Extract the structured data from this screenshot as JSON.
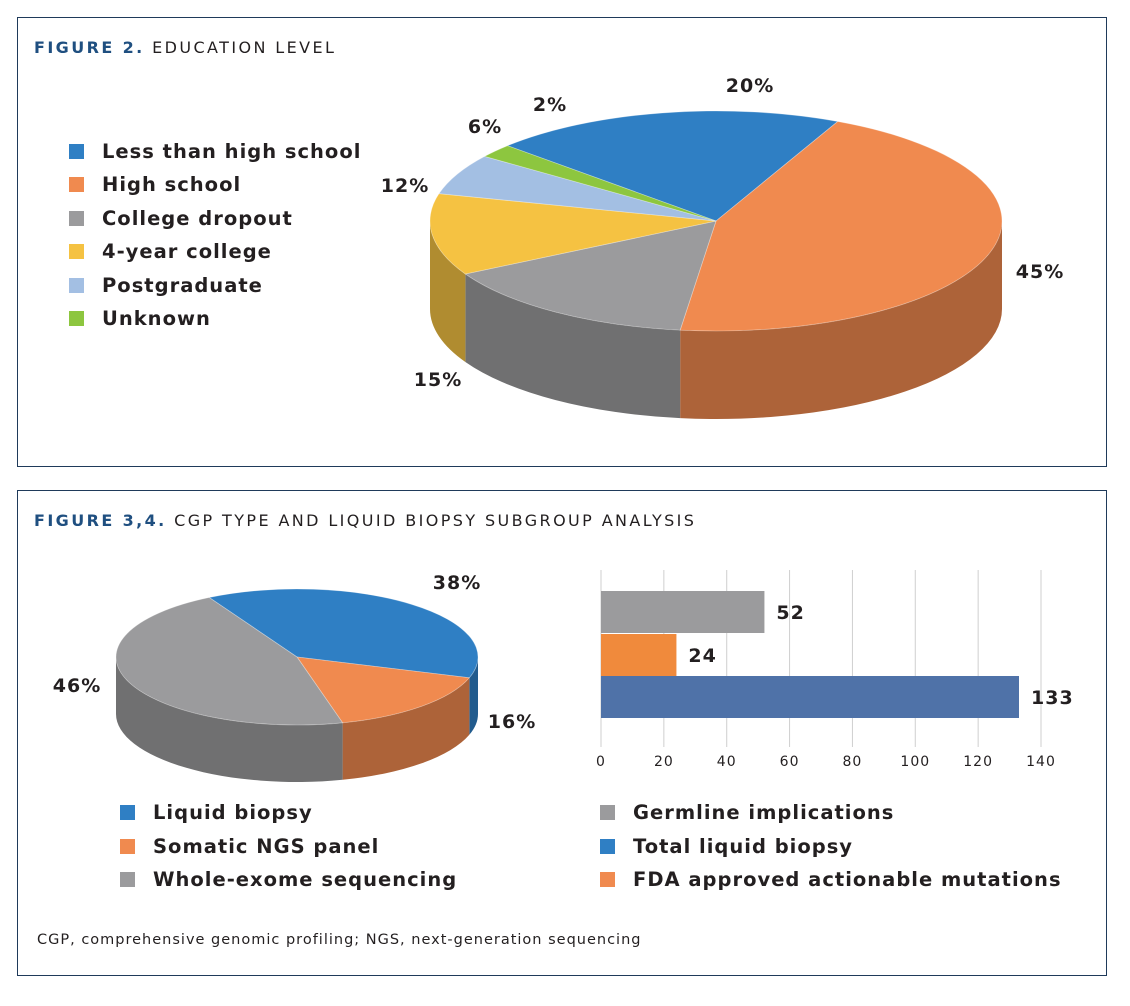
{
  "figure2": {
    "title_number": "FIGURE 2.",
    "title_text": "EDUCATION LEVEL",
    "chart_data": {
      "type": "pie",
      "title": "EDUCATION LEVEL",
      "categories": [
        "Less than high school",
        "High school",
        "College dropout",
        "4-year college",
        "Postgraduate",
        "Unknown"
      ],
      "values": [
        20,
        45,
        15,
        12,
        6,
        2
      ],
      "labels": [
        "20%",
        "45%",
        "15%",
        "12%",
        "6%",
        "2%"
      ],
      "colors": [
        "#2f7fc4",
        "#f08a4f",
        "#9b9b9d",
        "#f5c242",
        "#a3bfe3",
        "#8dc63f"
      ],
      "legend_position": "left"
    }
  },
  "figure34": {
    "title_number": "FIGURE 3,4.",
    "title_text": "CGP TYPE AND LIQUID BIOPSY SUBGROUP ANALYSIS",
    "pie_chart": {
      "type": "pie",
      "categories": [
        "Liquid biopsy",
        "Somatic NGS panel",
        "Whole-exome sequencing"
      ],
      "values": [
        38,
        16,
        46
      ],
      "labels": [
        "38%",
        "16%",
        "46%"
      ],
      "colors": [
        "#2f7fc4",
        "#f08a4f",
        "#9b9b9d"
      ],
      "legend_position": "bottom-left"
    },
    "bar_chart": {
      "type": "bar",
      "orientation": "horizontal",
      "categories": [
        "Germline implications",
        "FDA approved actionable mutations",
        "Total liquid biopsy"
      ],
      "values": [
        52,
        24,
        133
      ],
      "colors": [
        "#9b9b9d",
        "#f08a3c",
        "#4f72a8"
      ],
      "xlim": [
        0,
        140
      ],
      "ticks": [
        "0",
        "20",
        "40",
        "60",
        "80",
        "100",
        "120",
        "140"
      ],
      "grid": true,
      "legend_position": "bottom-right",
      "legend": [
        "Germline implications",
        "Total liquid biopsy",
        "FDA approved actionable mutations"
      ],
      "legend_colors": [
        "#9b9b9d",
        "#2f7fc4",
        "#f08a4f"
      ]
    },
    "footnote": "CGP, comprehensive genomic profiling; NGS, next-generation sequencing"
  }
}
